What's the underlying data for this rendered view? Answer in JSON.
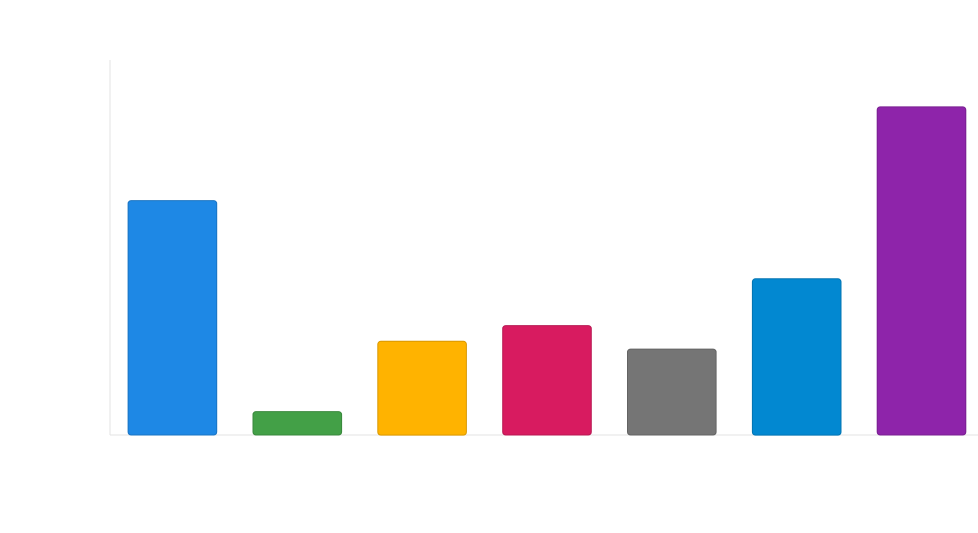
{
  "chart_data": {
    "type": "bar",
    "title": "",
    "xlabel": "",
    "ylabel": "",
    "categories": [
      "",
      "",
      "",
      "",
      "",
      "",
      ""
    ],
    "values": [
      60,
      6,
      24,
      28,
      22,
      40,
      84
    ],
    "ylim": [
      0,
      96
    ],
    "grid": false,
    "legend": "none",
    "colors": [
      "#1e88e5",
      "#43a047",
      "#ffb300",
      "#d81b60",
      "#757575",
      "#0288d1",
      "#8e24aa"
    ]
  }
}
